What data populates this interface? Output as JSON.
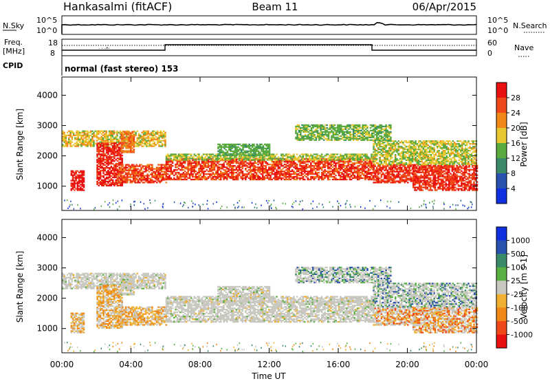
{
  "header": {
    "station": "Hankasalmi (fitACF)",
    "beam": "Beam 11",
    "date": "06/Apr/2015"
  },
  "top_panels": {
    "nsky_label": "N.Sky",
    "nsearch_label": "N.Search",
    "noise_ticks": [
      "10^5",
      "10^0"
    ],
    "freq_label": "Freq.",
    "freq_unit": "[MHz]",
    "freq_ticks": [
      "18",
      "8"
    ],
    "nave_ticks": [
      "60",
      "0"
    ],
    "nave_label": "Nave",
    "cpid_label": "CPID",
    "cpid_text": "normal (fast stereo) 153"
  },
  "x_axis": {
    "label": "Time UT",
    "ticks": [
      "00:00",
      "04:00",
      "08:00",
      "12:00",
      "16:00",
      "20:00",
      "00:00"
    ]
  },
  "colors": {
    "power": [
      "#1030e0",
      "#2a50b0",
      "#3a8a6a",
      "#5aaa40",
      "#e8c830",
      "#f08818",
      "#f04818",
      "#e81010"
    ],
    "velocity": [
      "#e81010",
      "#f04818",
      "#f08818",
      "#f0b030",
      "#c8c8c0",
      "#5ab040",
      "#3a8a6a",
      "#2a50b0",
      "#1030e0"
    ]
  },
  "chart_data": [
    {
      "type": "heatmap",
      "name": "power-panel",
      "ylabel": "Slant Range [km]",
      "yticks": [
        "4000",
        "3000",
        "2000",
        "1000"
      ],
      "ylim": [
        200,
        4600
      ],
      "colorbar_label": "Power [dB]",
      "colorbar_ticks": [
        "28",
        "24",
        "20",
        "16",
        "12",
        "8",
        "4"
      ],
      "colorbar_range": [
        0,
        32
      ]
    },
    {
      "type": "heatmap",
      "name": "velocity-panel",
      "ylabel": "Slant Range [km]",
      "yticks": [
        "4000",
        "3000",
        "2000",
        "1000"
      ],
      "ylim": [
        200,
        4600
      ],
      "colorbar_label": "Velocity [m s-1]",
      "colorbar_ticks": [
        "1000",
        "500",
        "100",
        "25",
        "-25",
        "-100",
        "-500",
        "-1000"
      ]
    }
  ]
}
